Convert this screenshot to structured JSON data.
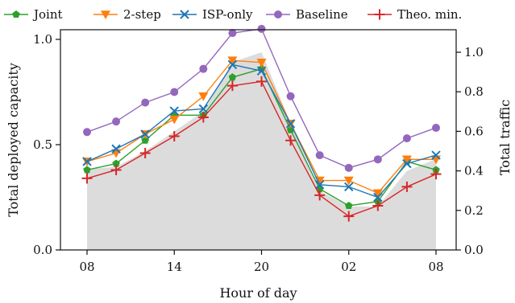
{
  "chart_data": {
    "type": "line",
    "xlabel": "Hour of day",
    "ylabel_left": "Total deployed capacity",
    "ylabel_right": "Total traffic",
    "x_tick_labels": [
      "08",
      "14",
      "20",
      "02",
      "08"
    ],
    "x_tick_positions": [
      0,
      3,
      6,
      9,
      12
    ],
    "x": [
      0,
      1,
      2,
      3,
      4,
      5,
      6,
      7,
      8,
      9,
      10,
      11,
      12
    ],
    "ylim_left": [
      0,
      1.0
    ],
    "y_ticks_left": [
      0.0,
      0.5,
      1.0
    ],
    "y_tick_labels_left": [
      "0.0",
      "0.5",
      "1.0"
    ],
    "ylim_right": [
      0,
      1.0
    ],
    "y_ticks_right": [
      0.0,
      0.2,
      0.4,
      0.6,
      0.8,
      1.0
    ],
    "y_tick_labels_right": [
      "0.0",
      "0.2",
      "0.4",
      "0.6",
      "0.8",
      "1.0"
    ],
    "legend_position": "top",
    "traffic": {
      "axis": "right",
      "color": "#dcdcdc",
      "values": [
        0.41,
        0.42,
        0.5,
        0.6,
        0.7,
        0.95,
        1.0,
        0.64,
        0.3,
        0.22,
        0.22,
        0.4,
        0.46
      ]
    },
    "series": [
      {
        "name": "Joint",
        "color": "#2ca02c",
        "marker": "pentagon",
        "values": [
          0.38,
          0.41,
          0.52,
          0.64,
          0.64,
          0.82,
          0.86,
          0.57,
          0.29,
          0.21,
          0.23,
          0.42,
          0.38
        ]
      },
      {
        "name": "2-step",
        "color": "#ff7f0e",
        "marker": "triangle-down",
        "values": [
          0.42,
          0.46,
          0.55,
          0.62,
          0.73,
          0.9,
          0.89,
          0.6,
          0.33,
          0.33,
          0.27,
          0.43,
          0.43
        ]
      },
      {
        "name": "ISP-only",
        "color": "#1f77b4",
        "marker": "x",
        "values": [
          0.42,
          0.48,
          0.55,
          0.66,
          0.67,
          0.88,
          0.85,
          0.6,
          0.31,
          0.3,
          0.25,
          0.41,
          0.45
        ]
      },
      {
        "name": "Baseline",
        "color": "#9467bd",
        "marker": "circle",
        "values": [
          0.56,
          0.61,
          0.7,
          0.75,
          0.86,
          1.03,
          1.05,
          0.73,
          0.45,
          0.39,
          0.43,
          0.53,
          0.58
        ]
      },
      {
        "name": "Theo. min.",
        "color": "#d62728",
        "marker": "plus",
        "values": [
          0.34,
          0.38,
          0.46,
          0.54,
          0.63,
          0.78,
          0.8,
          0.52,
          0.26,
          0.16,
          0.21,
          0.3,
          0.36
        ]
      }
    ]
  }
}
